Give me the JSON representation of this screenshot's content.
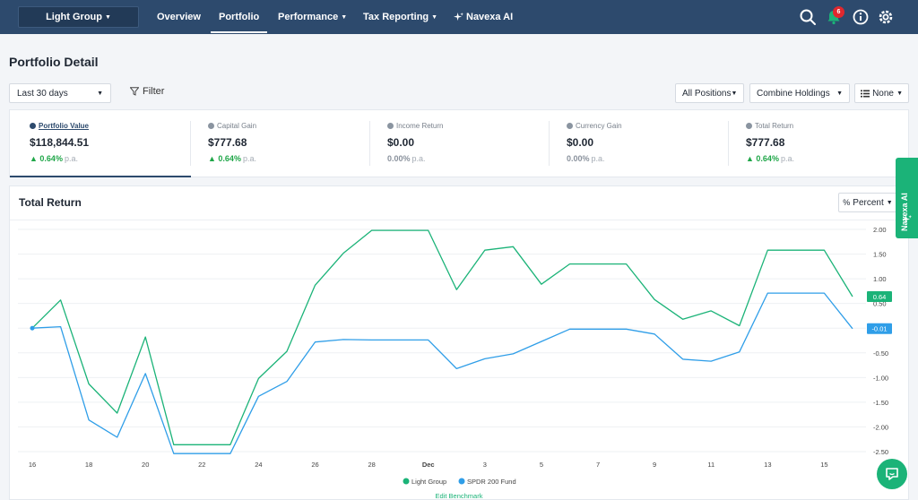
{
  "nav": {
    "portfolio_name": "Light Group",
    "links": [
      "Overview",
      "Portfolio",
      "Performance",
      "Tax Reporting",
      "Navexa AI"
    ],
    "notification_count": "6",
    "icons": [
      "search-icon",
      "bell-icon",
      "info-icon",
      "gear-icon"
    ]
  },
  "page": {
    "title": "Portfolio Detail"
  },
  "controls": {
    "date_range": "Last 30 days",
    "filter": "Filter",
    "positions": "All Positions",
    "holdings": "Combine Holdings",
    "grouping": "None"
  },
  "metrics": [
    {
      "label": "Portfolio Value",
      "value": "$118,844.51",
      "change": "0.64%",
      "period": "p.a.",
      "trend": "up"
    },
    {
      "label": "Capital Gain",
      "value": "$777.68",
      "change": "0.64%",
      "period": "p.a.",
      "trend": "up"
    },
    {
      "label": "Income Return",
      "value": "$0.00",
      "change": "0.00%",
      "period": "p.a.",
      "trend": "flat"
    },
    {
      "label": "Currency Gain",
      "value": "$0.00",
      "change": "0.00%",
      "period": "p.a.",
      "trend": "flat"
    },
    {
      "label": "Total Return",
      "value": "$777.68",
      "change": "0.64%",
      "period": "p.a.",
      "trend": "up"
    }
  ],
  "chart": {
    "title": "Total Return",
    "mode": "Percent",
    "edit_benchmark": "Edit Benchmark",
    "navexa_tab": "Navexa AI"
  },
  "colors": {
    "nav": "#2d4a6d",
    "portfolio": "#1bb378",
    "benchmark": "#2f9ee8"
  },
  "chart_data": {
    "type": "line",
    "title": "Total Return",
    "x": [
      "Nov 16",
      "Nov 17",
      "Nov 18",
      "Nov 19",
      "Nov 20",
      "Nov 21",
      "Nov 22",
      "Nov 23",
      "Nov 24",
      "Nov 25",
      "Nov 26",
      "Nov 27",
      "Nov 28",
      "Nov 29",
      "Nov 30",
      "Dec 1",
      "Dec 2",
      "Dec 3",
      "Dec 4",
      "Dec 5",
      "Dec 6",
      "Dec 7",
      "Dec 8",
      "Dec 9",
      "Dec 10",
      "Dec 11",
      "Dec 12",
      "Dec 13",
      "Dec 14",
      "Dec 15"
    ],
    "x_tick_labels": [
      "16",
      "18",
      "20",
      "22",
      "24",
      "26",
      "28",
      "Dec",
      "3",
      "5",
      "7",
      "9",
      "11",
      "13",
      "15"
    ],
    "y_ticks": [
      2.0,
      1.5,
      1.0,
      0.5,
      0,
      -0.5,
      -1.0,
      -1.5,
      -2.0,
      -2.5
    ],
    "y_tick_labels": [
      "2.00",
      "1.50",
      "1.00",
      "0.50",
      "",
      "-0.50",
      "-1.00",
      "-1.50",
      "-2.00",
      "-2.50"
    ],
    "ylim": [
      -2.7,
      2.2
    ],
    "series": [
      {
        "name": "Light Group",
        "color": "#1bb378",
        "last_label": "0.64",
        "values": [
          0.0,
          0.57,
          -1.13,
          -1.72,
          -0.18,
          -2.36,
          -2.36,
          -2.36,
          -1.02,
          -0.47,
          0.87,
          1.52,
          1.98,
          1.98,
          1.98,
          0.78,
          1.58,
          1.65,
          0.89,
          1.3,
          1.3,
          1.3,
          0.58,
          0.18,
          0.35,
          0.05,
          1.58,
          1.58,
          1.58,
          0.64
        ]
      },
      {
        "name": "SPDR 200 Fund",
        "color": "#2f9ee8",
        "last_label": "-0.01",
        "values": [
          0.0,
          0.03,
          -1.86,
          -2.21,
          -0.92,
          -2.54,
          -2.54,
          -2.54,
          -1.38,
          -1.08,
          -0.28,
          -0.23,
          -0.24,
          -0.24,
          -0.24,
          -0.82,
          -0.62,
          -0.52,
          -0.27,
          -0.02,
          -0.02,
          -0.02,
          -0.12,
          -0.63,
          -0.67,
          -0.48,
          0.71,
          0.71,
          0.71,
          -0.01
        ]
      }
    ]
  }
}
